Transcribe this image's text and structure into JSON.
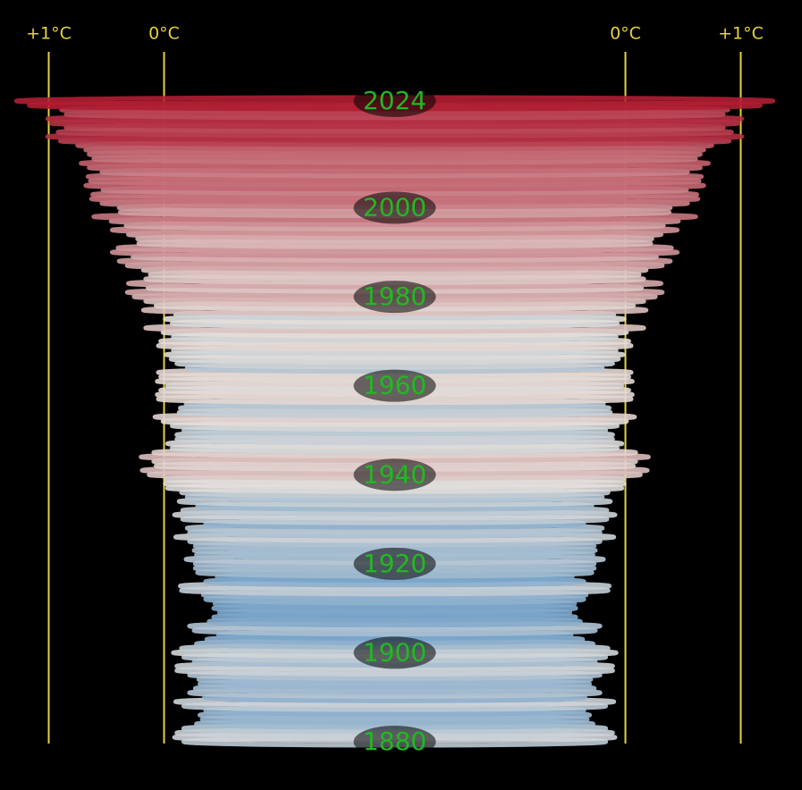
{
  "chart_data": {
    "type": "spiral-stack",
    "x": [
      1880,
      1881,
      1882,
      1883,
      1884,
      1885,
      1886,
      1887,
      1888,
      1889,
      1890,
      1891,
      1892,
      1893,
      1894,
      1895,
      1896,
      1897,
      1898,
      1899,
      1900,
      1901,
      1902,
      1903,
      1904,
      1905,
      1906,
      1907,
      1908,
      1909,
      1910,
      1911,
      1912,
      1913,
      1914,
      1915,
      1916,
      1917,
      1918,
      1919,
      1920,
      1921,
      1922,
      1923,
      1924,
      1925,
      1926,
      1927,
      1928,
      1929,
      1930,
      1931,
      1932,
      1933,
      1934,
      1935,
      1936,
      1937,
      1938,
      1939,
      1940,
      1941,
      1942,
      1943,
      1944,
      1945,
      1946,
      1947,
      1948,
      1949,
      1950,
      1951,
      1952,
      1953,
      1954,
      1955,
      1956,
      1957,
      1958,
      1959,
      1960,
      1961,
      1962,
      1963,
      1964,
      1965,
      1966,
      1967,
      1968,
      1969,
      1970,
      1971,
      1972,
      1973,
      1974,
      1975,
      1976,
      1977,
      1978,
      1979,
      1980,
      1981,
      1982,
      1983,
      1984,
      1985,
      1986,
      1987,
      1988,
      1989,
      1990,
      1991,
      1992,
      1993,
      1994,
      1995,
      1996,
      1997,
      1998,
      1999,
      2000,
      2001,
      2002,
      2003,
      2004,
      2005,
      2006,
      2007,
      2008,
      2009,
      2010,
      2011,
      2012,
      2013,
      2014,
      2015,
      2016,
      2017,
      2018,
      2019,
      2020,
      2021,
      2022,
      2023,
      2024
    ],
    "values": [
      -0.17,
      -0.09,
      -0.11,
      -0.17,
      -0.28,
      -0.33,
      -0.31,
      -0.36,
      -0.17,
      -0.1,
      -0.35,
      -0.22,
      -0.27,
      -0.31,
      -0.3,
      -0.22,
      -0.11,
      -0.11,
      -0.26,
      -0.17,
      -0.08,
      -0.15,
      -0.28,
      -0.37,
      -0.47,
      -0.26,
      -0.22,
      -0.39,
      -0.43,
      -0.48,
      -0.43,
      -0.44,
      -0.36,
      -0.34,
      -0.15,
      -0.14,
      -0.36,
      -0.46,
      -0.29,
      -0.27,
      -0.27,
      -0.19,
      -0.28,
      -0.26,
      -0.27,
      -0.22,
      -0.1,
      -0.22,
      -0.2,
      -0.36,
      -0.16,
      -0.09,
      -0.16,
      -0.29,
      -0.13,
      -0.2,
      -0.15,
      -0.03,
      -0.01,
      -0.02,
      0.13,
      0.19,
      0.07,
      0.09,
      0.2,
      0.09,
      -0.07,
      -0.03,
      -0.11,
      -0.11,
      -0.17,
      -0.07,
      0.01,
      0.08,
      -0.13,
      -0.14,
      -0.19,
      0.05,
      0.06,
      0.03,
      -0.03,
      0.06,
      0.03,
      0.05,
      -0.2,
      -0.11,
      -0.06,
      -0.02,
      -0.08,
      0.05,
      0.03,
      -0.08,
      0.01,
      0.16,
      -0.07,
      -0.01,
      -0.1,
      0.18,
      0.07,
      0.16,
      0.26,
      0.32,
      0.14,
      0.31,
      0.16,
      0.12,
      0.18,
      0.32,
      0.39,
      0.27,
      0.45,
      0.4,
      0.22,
      0.23,
      0.31,
      0.45,
      0.33,
      0.46,
      0.61,
      0.38,
      0.39,
      0.54,
      0.63,
      0.62,
      0.53,
      0.68,
      0.64,
      0.66,
      0.54,
      0.65,
      0.72,
      0.61,
      0.65,
      0.68,
      0.75,
      0.9,
      1.01,
      0.92,
      0.85,
      0.98,
      1.01,
      0.85,
      0.89,
      1.17,
      1.28
    ],
    "xlim": [
      -2,
      1.5
    ],
    "xticks": [
      {
        "value": 1,
        "label": "+1°C"
      },
      {
        "value": 0,
        "label": "0°C"
      }
    ],
    "ylim": [
      1880,
      2024
    ],
    "yticks": [
      1880,
      1900,
      1920,
      1940,
      1960,
      1980,
      2000,
      2024
    ],
    "colors": {
      "cold": "#7aa6cc",
      "neutral": "#e6e1dc",
      "warm": "#b01e33",
      "axis": "#e6d23c",
      "label": "#22b822"
    }
  }
}
